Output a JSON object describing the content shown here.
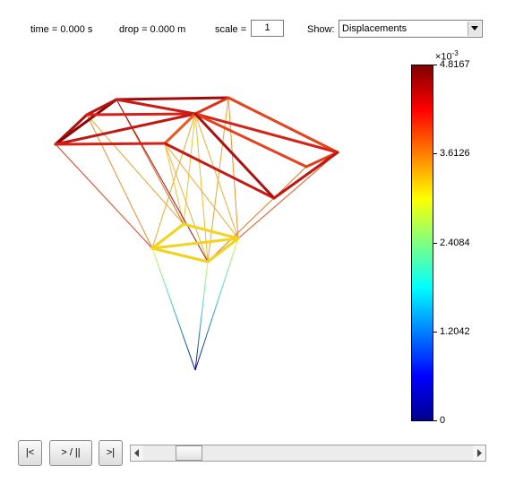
{
  "controls": {
    "time_text": "time = 0.000 s",
    "drop_text": "drop = 0.000 m",
    "scale_label": "scale =",
    "scale_value": "1",
    "show_label": "Show:",
    "show_selected": "Displacements"
  },
  "colorbar": {
    "exponent_base": "×10",
    "exponent_power": "-3",
    "min": 0,
    "max": 4.8167,
    "ticks": [
      "4.8167",
      "3.6126",
      "2.4084",
      "1.2042",
      "0"
    ],
    "colors": [
      "#00008f",
      "#0000ff",
      "#0080ff",
      "#00ffff",
      "#80ff80",
      "#ffff00",
      "#ff8000",
      "#ff0000",
      "#800000"
    ]
  },
  "playback": {
    "rewind_label": "|<",
    "play_pause_label": "> / ||",
    "end_label": ">|",
    "slider_left_arrow": "◀",
    "slider_right_arrow": "▶"
  }
}
